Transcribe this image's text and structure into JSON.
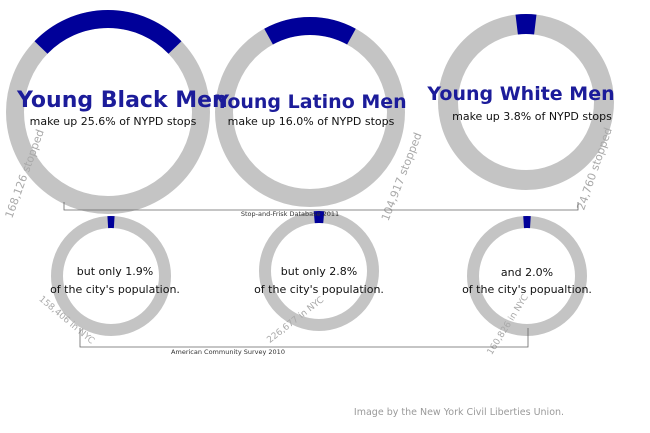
{
  "colors": {
    "accent": "#000099",
    "track": "#c4c4c4",
    "title": "#1c1c9a",
    "count": "#a9a9a9",
    "bracket": "#666666"
  },
  "chart_data": [
    {
      "type": "pie",
      "group": "Stop-and-Frisk Database 2011",
      "title": "Young Black Men",
      "subtitle": "make up 25.6% of NYPD stops",
      "value": 25.6,
      "unit": "percent",
      "count_label": "168,126 stopped"
    },
    {
      "type": "pie",
      "group": "Stop-and-Frisk Database 2011",
      "title": "Young Latino Men",
      "subtitle": "make up 16.0% of NYPD stops",
      "value": 16.0,
      "unit": "percent",
      "count_label": "104,917 stopped"
    },
    {
      "type": "pie",
      "group": "Stop-and-Frisk Database 2011",
      "title": "Young White Men",
      "subtitle": "make up 3.8% of NYPD stops",
      "value": 3.8,
      "unit": "percent",
      "count_label": "24,760 stopped"
    },
    {
      "type": "pie",
      "group": "American Community Survey 2010",
      "line1": "but only 1.9%",
      "line2": "of the city's population.",
      "value": 1.9,
      "unit": "percent",
      "count_label": "158,406 in NYC"
    },
    {
      "type": "pie",
      "group": "American Community Survey 2010",
      "line1": "but only 2.8%",
      "line2": "of the city's population.",
      "value": 2.8,
      "unit": "percent",
      "count_label": "226,677 in NYC"
    },
    {
      "type": "pie",
      "group": "American Community Survey 2010",
      "line1": "and 2.0%",
      "line2": "of the city's popualtion.",
      "value": 2.0,
      "unit": "percent",
      "count_label": "160,826 in NYC"
    }
  ],
  "sources": {
    "top": "Stop-and-Frisk Database 2011",
    "bottom": "American Community Survey 2010"
  },
  "credit": "Image by the New York Civil Liberties Union."
}
